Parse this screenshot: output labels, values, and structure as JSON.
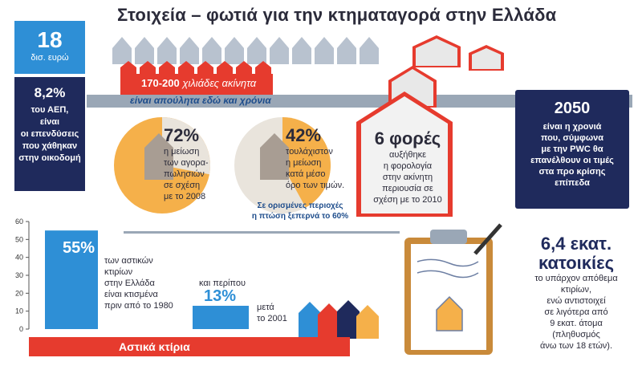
{
  "title": "Στοιχεία – φωτιά για την κτηματαγορά στην Ελλάδα",
  "blue_box": {
    "value": "18",
    "unit": "δισ. ευρώ"
  },
  "navy_box": {
    "value": "8,2%",
    "lines": [
      "του ΑΕΠ,",
      "είναι",
      "οι επενδύσεις",
      "που χάθηκαν",
      "στην οικοδομή"
    ]
  },
  "unsold": {
    "range": "170-200",
    "label": "χιλιάδες ακίνητα",
    "band_text": "είναι απούλητα εδώ και χρόνια"
  },
  "stat_72": {
    "value": "72%",
    "lines": [
      "η μείωση",
      "των αγορα-",
      "πωλησιών",
      "σε σχέση",
      "με το 2008"
    ],
    "fraction": 0.72
  },
  "stat_42": {
    "value": "42%",
    "lines": [
      "τουλάχιστον",
      "η μείωση",
      "κατά μέσο",
      "όρο των τιμών."
    ],
    "note": [
      "Σε ορισμένες περιοχές",
      "η πτώση ξεπερνά το 60%"
    ],
    "fraction": 0.42
  },
  "stat_6": {
    "value": "6 φορές",
    "lines": [
      "αυξήθηκε",
      "η φορολογία",
      "στην ακίνητη",
      "περιουσία σε",
      "σχέση με το 2010"
    ]
  },
  "stat_2050": {
    "value": "2050",
    "lines": [
      "είναι η χρονιά",
      "που, σύμφωνα",
      "με την PWC θα",
      "επανέλθουν οι τιμές",
      "στα προ κρίσης",
      "επίπεδα"
    ]
  },
  "chart_data": {
    "type": "bar",
    "categories": [
      "πριν από το 1980",
      "μετά το 2001"
    ],
    "values": [
      55,
      13
    ],
    "ylim": [
      0,
      60
    ],
    "yticks": [
      "0",
      "10",
      "20",
      "30",
      "40",
      "50",
      "60"
    ],
    "labels": [
      "55%",
      "13%"
    ],
    "title": "Αστικά κτίρια",
    "bar1_text": [
      "των αστικών",
      "κτιρίων",
      "στην Ελλάδα",
      "είναι κτισμένα",
      "πριν από το 1980"
    ],
    "bar2_prefix": "και περίπου",
    "bar2_text": [
      "μετά",
      "το 2001"
    ]
  },
  "stat_64": {
    "value_lines": [
      "6,4 εκατ.",
      "κατοικίες"
    ],
    "lines": [
      "το υπάρχον απόθεμα",
      "κτιρίων,",
      "ενώ αντιστοιχεί",
      "σε λιγότερα από",
      "9 εκατ. άτομα",
      "(πληθυσμός",
      "άνω των 18 ετών)."
    ]
  },
  "colors": {
    "red": "#e63b2e",
    "navy": "#1f2a5c",
    "blue": "#2e8fd6",
    "orange": "#f5b04a",
    "gray": "#9aa7b6"
  }
}
